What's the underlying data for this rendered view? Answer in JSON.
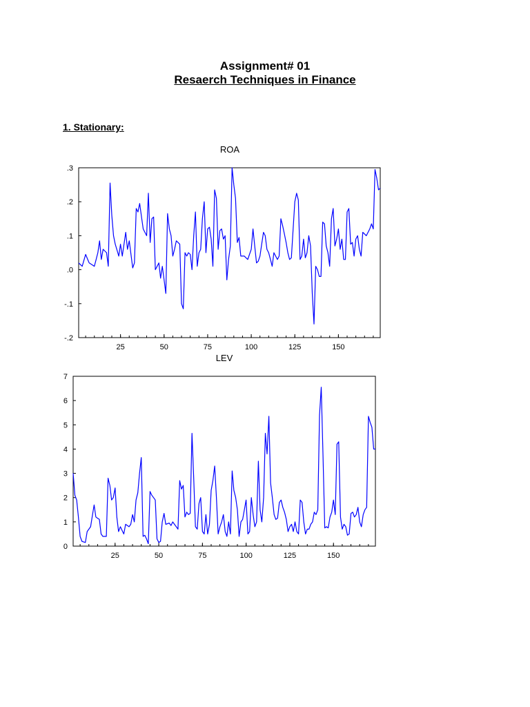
{
  "doc": {
    "title": "Assignment# 01",
    "subtitle": "Resaerch Techniques in Finance",
    "section": "1. Stationary:"
  },
  "chart_data": [
    {
      "type": "line",
      "title": "ROA",
      "color": "#0000ff",
      "ylim": [
        -0.2,
        0.3
      ],
      "yticks": [
        0.3,
        0.2,
        0.1,
        0.0,
        -0.1,
        -0.2
      ],
      "ytick_labels": [
        ".3",
        ".2",
        ".1",
        ".0",
        "-.1",
        "-.2"
      ],
      "xlim": [
        1,
        174
      ],
      "xticks": [
        25,
        50,
        75,
        100,
        125,
        150
      ],
      "xtick_labels": [
        "25",
        "50",
        "75",
        "100",
        "125",
        "150"
      ],
      "keypoints": [
        [
          1,
          0.02
        ],
        [
          3,
          0.01
        ],
        [
          5,
          0.045
        ],
        [
          7,
          0.02
        ],
        [
          10,
          0.01
        ],
        [
          12,
          0.05
        ],
        [
          13,
          0.085
        ],
        [
          14,
          0.03
        ],
        [
          15,
          0.06
        ],
        [
          17,
          0.05
        ],
        [
          18,
          0.01
        ],
        [
          19,
          0.255
        ],
        [
          20,
          0.16
        ],
        [
          21,
          0.1
        ],
        [
          22,
          0.075
        ],
        [
          24,
          0.04
        ],
        [
          25,
          0.075
        ],
        [
          26,
          0.04
        ],
        [
          28,
          0.11
        ],
        [
          29,
          0.06
        ],
        [
          30,
          0.085
        ],
        [
          32,
          0.005
        ],
        [
          33,
          0.02
        ],
        [
          34,
          0.18
        ],
        [
          35,
          0.17
        ],
        [
          36,
          0.195
        ],
        [
          38,
          0.12
        ],
        [
          40,
          0.1
        ],
        [
          41,
          0.225
        ],
        [
          42,
          0.08
        ],
        [
          43,
          0.15
        ],
        [
          44,
          0.155
        ],
        [
          45,
          0.0
        ],
        [
          46,
          0.01
        ],
        [
          47,
          0.02
        ],
        [
          48,
          -0.025
        ],
        [
          49,
          0.01
        ],
        [
          51,
          -0.07
        ],
        [
          52,
          0.165
        ],
        [
          53,
          0.12
        ],
        [
          54,
          0.1
        ],
        [
          55,
          0.04
        ],
        [
          56,
          0.06
        ],
        [
          57,
          0.085
        ],
        [
          59,
          0.075
        ],
        [
          60,
          -0.1
        ],
        [
          61,
          -0.115
        ],
        [
          62,
          0.05
        ],
        [
          63,
          0.04
        ],
        [
          64,
          0.05
        ],
        [
          65,
          0.045
        ],
        [
          66,
          0.0
        ],
        [
          67,
          0.1
        ],
        [
          68,
          0.17
        ],
        [
          69,
          0.01
        ],
        [
          70,
          0.05
        ],
        [
          71,
          0.06
        ],
        [
          72,
          0.15
        ],
        [
          73,
          0.2
        ],
        [
          74,
          0.05
        ],
        [
          75,
          0.12
        ],
        [
          76,
          0.125
        ],
        [
          77,
          0.09
        ],
        [
          78,
          0.01
        ],
        [
          79,
          0.235
        ],
        [
          80,
          0.21
        ],
        [
          81,
          0.06
        ],
        [
          82,
          0.115
        ],
        [
          83,
          0.12
        ],
        [
          84,
          0.09
        ],
        [
          85,
          0.1
        ],
        [
          86,
          -0.03
        ],
        [
          87,
          0.03
        ],
        [
          88,
          0.07
        ],
        [
          89,
          0.3
        ],
        [
          90,
          0.25
        ],
        [
          91,
          0.21
        ],
        [
          92,
          0.08
        ],
        [
          93,
          0.095
        ],
        [
          94,
          0.04
        ],
        [
          96,
          0.04
        ],
        [
          98,
          0.03
        ],
        [
          100,
          0.06
        ],
        [
          101,
          0.12
        ],
        [
          102,
          0.07
        ],
        [
          103,
          0.02
        ],
        [
          104,
          0.025
        ],
        [
          105,
          0.04
        ],
        [
          107,
          0.11
        ],
        [
          108,
          0.1
        ],
        [
          109,
          0.06
        ],
        [
          110,
          0.05
        ],
        [
          112,
          0.01
        ],
        [
          113,
          0.05
        ],
        [
          115,
          0.03
        ],
        [
          116,
          0.04
        ],
        [
          117,
          0.15
        ],
        [
          118,
          0.13
        ],
        [
          120,
          0.08
        ],
        [
          121,
          0.05
        ],
        [
          122,
          0.03
        ],
        [
          123,
          0.035
        ],
        [
          125,
          0.2
        ],
        [
          126,
          0.225
        ],
        [
          127,
          0.205
        ],
        [
          128,
          0.03
        ],
        [
          129,
          0.04
        ],
        [
          130,
          0.09
        ],
        [
          131,
          0.035
        ],
        [
          132,
          0.05
        ],
        [
          133,
          0.1
        ],
        [
          134,
          0.07
        ],
        [
          135,
          -0.07
        ],
        [
          136,
          -0.16
        ],
        [
          137,
          0.01
        ],
        [
          138,
          0.0
        ],
        [
          139,
          -0.02
        ],
        [
          140,
          -0.02
        ],
        [
          141,
          0.14
        ],
        [
          142,
          0.135
        ],
        [
          143,
          0.07
        ],
        [
          144,
          0.05
        ],
        [
          145,
          0.01
        ],
        [
          146,
          0.15
        ],
        [
          147,
          0.18
        ],
        [
          148,
          0.07
        ],
        [
          149,
          0.09
        ],
        [
          150,
          0.12
        ],
        [
          151,
          0.06
        ],
        [
          152,
          0.09
        ],
        [
          153,
          0.03
        ],
        [
          154,
          0.03
        ],
        [
          155,
          0.17
        ],
        [
          156,
          0.18
        ],
        [
          157,
          0.075
        ],
        [
          158,
          0.08
        ],
        [
          159,
          0.04
        ],
        [
          160,
          0.09
        ],
        [
          161,
          0.1
        ],
        [
          162,
          0.06
        ],
        [
          163,
          0.04
        ],
        [
          164,
          0.11
        ],
        [
          165,
          0.105
        ],
        [
          166,
          0.1
        ],
        [
          167,
          0.11
        ],
        [
          168,
          0.12
        ],
        [
          169,
          0.135
        ],
        [
          170,
          0.12
        ],
        [
          171,
          0.295
        ],
        [
          172,
          0.27
        ],
        [
          173,
          0.235
        ],
        [
          174,
          0.24
        ]
      ]
    },
    {
      "type": "line",
      "title": "LEV",
      "color": "#0000ff",
      "ylim": [
        0,
        7
      ],
      "yticks": [
        7,
        6,
        5,
        4,
        3,
        2,
        1,
        0
      ],
      "ytick_labels": [
        "7",
        "6",
        "5",
        "4",
        "3",
        "2",
        "1",
        "0"
      ],
      "xlim": [
        1,
        174
      ],
      "xticks": [
        25,
        50,
        75,
        100,
        125,
        150
      ],
      "xtick_labels": [
        "25",
        "50",
        "75",
        "100",
        "125",
        "150"
      ],
      "keypoints": [
        [
          1,
          3.0
        ],
        [
          2,
          2.1
        ],
        [
          3,
          1.9
        ],
        [
          4,
          1.2
        ],
        [
          5,
          0.4
        ],
        [
          6,
          0.2
        ],
        [
          8,
          0.15
        ],
        [
          9,
          0.6
        ],
        [
          11,
          0.8
        ],
        [
          13,
          1.7
        ],
        [
          14,
          1.2
        ],
        [
          16,
          1.1
        ],
        [
          17,
          0.5
        ],
        [
          18,
          0.4
        ],
        [
          20,
          0.4
        ],
        [
          21,
          2.8
        ],
        [
          22,
          2.5
        ],
        [
          23,
          1.9
        ],
        [
          24,
          2.0
        ],
        [
          25,
          2.4
        ],
        [
          26,
          1.2
        ],
        [
          27,
          0.6
        ],
        [
          28,
          0.8
        ],
        [
          30,
          0.5
        ],
        [
          31,
          0.9
        ],
        [
          33,
          0.8
        ],
        [
          34,
          0.9
        ],
        [
          35,
          1.3
        ],
        [
          36,
          1.0
        ],
        [
          37,
          1.9
        ],
        [
          38,
          2.2
        ],
        [
          39,
          3.0
        ],
        [
          40,
          3.65
        ],
        [
          41,
          0.4
        ],
        [
          42,
          0.45
        ],
        [
          43,
          0.3
        ],
        [
          44,
          0.1
        ],
        [
          45,
          2.25
        ],
        [
          46,
          2.1
        ],
        [
          47,
          2.0
        ],
        [
          48,
          1.9
        ],
        [
          49,
          0.3
        ],
        [
          50,
          0.15
        ],
        [
          51,
          0.2
        ],
        [
          52,
          1.0
        ],
        [
          53,
          1.35
        ],
        [
          54,
          0.9
        ],
        [
          56,
          0.95
        ],
        [
          57,
          0.85
        ],
        [
          58,
          1.0
        ],
        [
          60,
          0.8
        ],
        [
          61,
          0.7
        ],
        [
          62,
          2.7
        ],
        [
          63,
          2.35
        ],
        [
          64,
          2.5
        ],
        [
          65,
          1.2
        ],
        [
          66,
          1.4
        ],
        [
          67,
          1.3
        ],
        [
          68,
          1.35
        ],
        [
          69,
          4.65
        ],
        [
          70,
          2.8
        ],
        [
          71,
          0.8
        ],
        [
          72,
          0.7
        ],
        [
          73,
          1.75
        ],
        [
          74,
          2.0
        ],
        [
          75,
          0.6
        ],
        [
          76,
          0.5
        ],
        [
          77,
          1.3
        ],
        [
          78,
          0.5
        ],
        [
          79,
          0.9
        ],
        [
          80,
          2.3
        ],
        [
          81,
          2.7
        ],
        [
          82,
          3.3
        ],
        [
          83,
          2.0
        ],
        [
          84,
          0.5
        ],
        [
          85,
          0.8
        ],
        [
          86,
          1.0
        ],
        [
          87,
          1.3
        ],
        [
          88,
          0.6
        ],
        [
          89,
          0.4
        ],
        [
          90,
          1.0
        ],
        [
          91,
          0.5
        ],
        [
          92,
          3.1
        ],
        [
          93,
          2.3
        ],
        [
          94,
          2.0
        ],
        [
          95,
          1.5
        ],
        [
          96,
          0.4
        ],
        [
          97,
          1.0
        ],
        [
          98,
          1.1
        ],
        [
          99,
          1.5
        ],
        [
          100,
          1.9
        ],
        [
          101,
          0.5
        ],
        [
          102,
          0.6
        ],
        [
          103,
          2.0
        ],
        [
          104,
          1.3
        ],
        [
          105,
          0.8
        ],
        [
          106,
          1.0
        ],
        [
          107,
          3.5
        ],
        [
          108,
          1.5
        ],
        [
          109,
          1.0
        ],
        [
          110,
          2.0
        ],
        [
          111,
          4.65
        ],
        [
          112,
          3.8
        ],
        [
          113,
          5.35
        ],
        [
          114,
          2.6
        ],
        [
          115,
          2.0
        ],
        [
          116,
          1.3
        ],
        [
          117,
          1.1
        ],
        [
          118,
          1.15
        ],
        [
          119,
          1.8
        ],
        [
          120,
          1.9
        ],
        [
          121,
          1.6
        ],
        [
          122,
          1.4
        ],
        [
          123,
          1.1
        ],
        [
          124,
          0.6
        ],
        [
          125,
          0.8
        ],
        [
          126,
          0.9
        ],
        [
          127,
          0.6
        ],
        [
          128,
          1.0
        ],
        [
          129,
          0.6
        ],
        [
          130,
          0.5
        ],
        [
          131,
          1.9
        ],
        [
          132,
          1.8
        ],
        [
          133,
          1.0
        ],
        [
          134,
          0.5
        ],
        [
          135,
          0.7
        ],
        [
          136,
          0.7
        ],
        [
          137,
          0.9
        ],
        [
          138,
          1.0
        ],
        [
          139,
          1.4
        ],
        [
          140,
          1.3
        ],
        [
          141,
          1.5
        ],
        [
          142,
          5.4
        ],
        [
          143,
          6.55
        ],
        [
          144,
          3.8
        ],
        [
          145,
          0.75
        ],
        [
          146,
          0.8
        ],
        [
          147,
          0.75
        ],
        [
          148,
          1.2
        ],
        [
          149,
          1.4
        ],
        [
          150,
          1.9
        ],
        [
          151,
          1.3
        ],
        [
          152,
          4.2
        ],
        [
          153,
          4.3
        ],
        [
          154,
          1.2
        ],
        [
          155,
          0.7
        ],
        [
          156,
          0.9
        ],
        [
          157,
          0.8
        ],
        [
          158,
          0.45
        ],
        [
          159,
          0.5
        ],
        [
          160,
          1.35
        ],
        [
          161,
          1.4
        ],
        [
          162,
          1.2
        ],
        [
          163,
          1.3
        ],
        [
          164,
          1.6
        ],
        [
          165,
          1.0
        ],
        [
          166,
          0.8
        ],
        [
          167,
          1.3
        ],
        [
          168,
          1.5
        ],
        [
          169,
          1.6
        ],
        [
          170,
          5.35
        ],
        [
          171,
          5.1
        ],
        [
          172,
          4.9
        ],
        [
          173,
          4.0
        ],
        [
          174,
          4.0
        ]
      ]
    }
  ]
}
